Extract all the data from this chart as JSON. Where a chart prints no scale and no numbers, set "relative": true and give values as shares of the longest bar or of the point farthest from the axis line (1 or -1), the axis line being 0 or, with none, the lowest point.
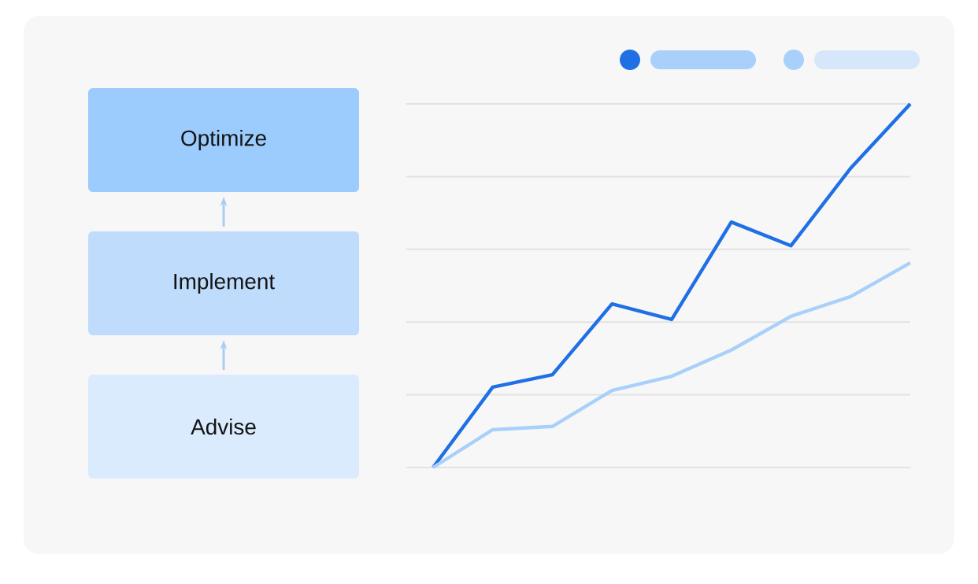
{
  "chart_data": [
    {
      "type": "other",
      "annotations": [
        "Optimize",
        "Implement",
        "Advise"
      ]
    },
    {
      "type": "line",
      "relative": true,
      "grid": "y",
      "line_style": "solid",
      "marker": "none",
      "categories": [
        null,
        null,
        null,
        null,
        null,
        null,
        null,
        null,
        null
      ],
      "series": [
        {
          "color": "#1f6fe5",
          "values": [
            0,
            0.221,
            0.255,
            0.45,
            0.407,
            0.675,
            0.61,
            0.823,
            1
          ]
        },
        {
          "color": "#a9d0fa",
          "values": [
            0,
            0.104,
            0.113,
            0.212,
            0.251,
            0.323,
            0.416,
            0.47,
            0.563
          ]
        }
      ]
    }
  ]
}
